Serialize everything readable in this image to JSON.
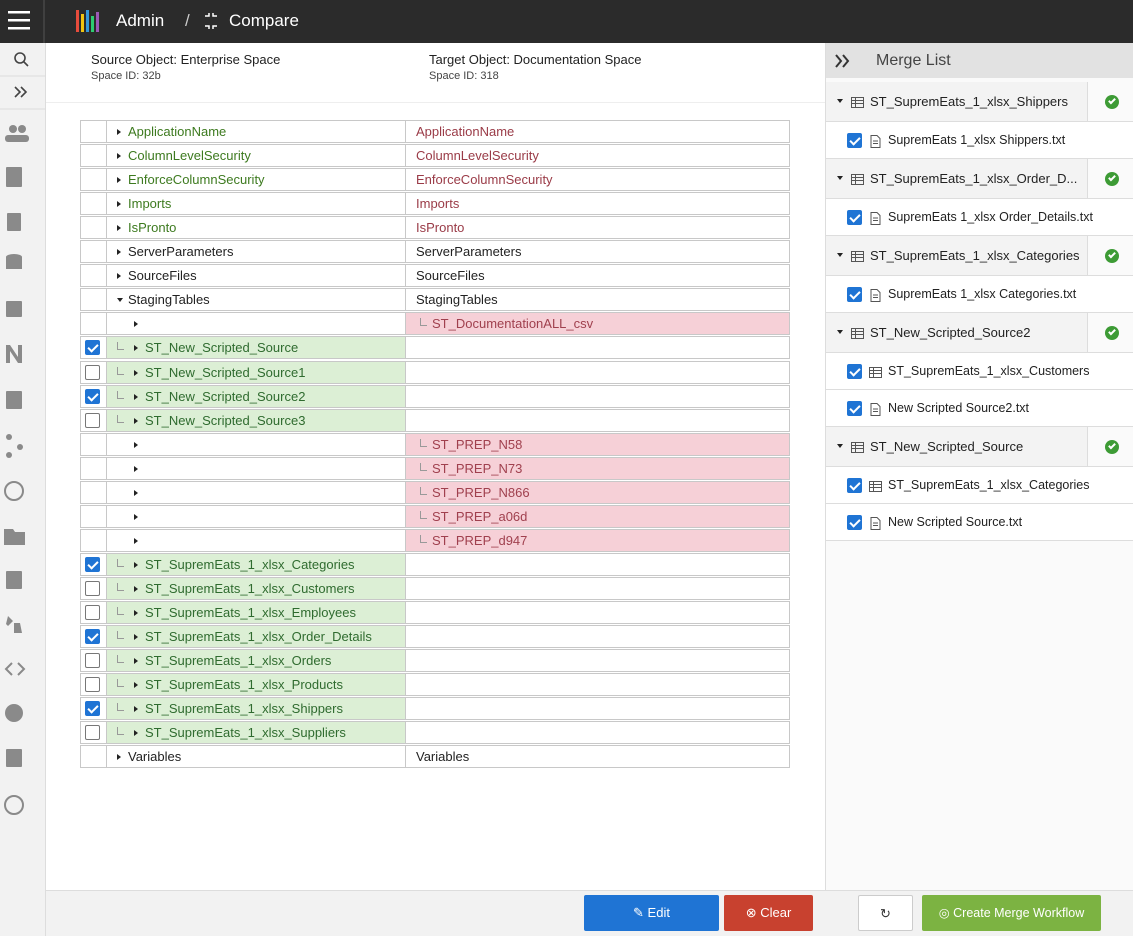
{
  "header": {
    "app": "Admin",
    "separator": "/",
    "page": "Compare"
  },
  "source": {
    "object": "Source Object: Enterprise Space",
    "space_id": "Space ID: 32b"
  },
  "target": {
    "object": "Target Object: Documentation Space",
    "space_id": "Space ID: 318"
  },
  "compare": {
    "rows": [
      {
        "left": "ApplicationName",
        "right": "ApplicationName",
        "status": "changed"
      },
      {
        "left": "ColumnLevelSecurity",
        "right": "ColumnLevelSecurity",
        "status": "changed"
      },
      {
        "left": "EnforceColumnSecurity",
        "right": "EnforceColumnSecurity",
        "status": "changed"
      },
      {
        "left": "Imports",
        "right": "Imports",
        "status": "changed"
      },
      {
        "left": "IsPronto",
        "right": "IsPronto",
        "status": "changed"
      },
      {
        "left": "ServerParameters",
        "right": "ServerParameters",
        "status": "same"
      },
      {
        "left": "SourceFiles",
        "right": "SourceFiles",
        "status": "same"
      },
      {
        "left": "StagingTables",
        "right": "StagingTables",
        "status": "same",
        "expanded": true
      },
      {
        "left": null,
        "right": "ST_DocumentationALL_csv",
        "status": "target_only"
      },
      {
        "left": "ST_New_Scripted_Source",
        "right": null,
        "status": "source_only",
        "checked": true
      },
      {
        "left": "ST_New_Scripted_Source1",
        "right": null,
        "status": "source_only",
        "checked": false
      },
      {
        "left": "ST_New_Scripted_Source2",
        "right": null,
        "status": "source_only",
        "checked": true
      },
      {
        "left": "ST_New_Scripted_Source3",
        "right": null,
        "status": "source_only",
        "checked": false
      },
      {
        "left": null,
        "right": "ST_PREP_N58",
        "status": "target_only"
      },
      {
        "left": null,
        "right": "ST_PREP_N73",
        "status": "target_only"
      },
      {
        "left": null,
        "right": "ST_PREP_N866",
        "status": "target_only"
      },
      {
        "left": null,
        "right": "ST_PREP_a06d",
        "status": "target_only"
      },
      {
        "left": null,
        "right": "ST_PREP_d947",
        "status": "target_only"
      },
      {
        "left": "ST_SupremEats_1_xlsx_Categories",
        "right": null,
        "status": "source_only",
        "checked": true
      },
      {
        "left": "ST_SupremEats_1_xlsx_Customers",
        "right": null,
        "status": "source_only",
        "checked": false
      },
      {
        "left": "ST_SupremEats_1_xlsx_Employees",
        "right": null,
        "status": "source_only",
        "checked": false
      },
      {
        "left": "ST_SupremEats_1_xlsx_Order_Details",
        "right": null,
        "status": "source_only",
        "checked": true
      },
      {
        "left": "ST_SupremEats_1_xlsx_Orders",
        "right": null,
        "status": "source_only",
        "checked": false
      },
      {
        "left": "ST_SupremEats_1_xlsx_Products",
        "right": null,
        "status": "source_only",
        "checked": false
      },
      {
        "left": "ST_SupremEats_1_xlsx_Shippers",
        "right": null,
        "status": "source_only",
        "checked": true
      },
      {
        "left": "ST_SupremEats_1_xlsx_Suppliers",
        "right": null,
        "status": "source_only",
        "checked": false
      },
      {
        "left": "Variables",
        "right": "Variables",
        "status": "same"
      }
    ]
  },
  "merge_list": {
    "title": "Merge List",
    "groups": [
      {
        "name": "ST_SupremEats_1_xlsx_Shippers",
        "items": [
          {
            "name": "SupremEats 1_xlsx Shippers.txt",
            "icon": "file"
          }
        ]
      },
      {
        "name": "ST_SupremEats_1_xlsx_Order_D...",
        "items": [
          {
            "name": "SupremEats 1_xlsx Order_Details.txt",
            "icon": "file"
          }
        ]
      },
      {
        "name": "ST_SupremEats_1_xlsx_Categories",
        "items": [
          {
            "name": "SupremEats 1_xlsx Categories.txt",
            "icon": "file"
          }
        ]
      },
      {
        "name": "ST_New_Scripted_Source2",
        "items": [
          {
            "name": "ST_SupremEats_1_xlsx_Customers",
            "icon": "table"
          },
          {
            "name": "New Scripted Source2.txt",
            "icon": "file"
          }
        ]
      },
      {
        "name": "ST_New_Scripted_Source",
        "items": [
          {
            "name": "ST_SupremEats_1_xlsx_Categories",
            "icon": "table"
          },
          {
            "name": "New Scripted Source.txt",
            "icon": "file"
          }
        ]
      }
    ]
  },
  "buttons": {
    "edit": "Edit",
    "clear": "Clear",
    "create": "Create Merge Workflow"
  }
}
